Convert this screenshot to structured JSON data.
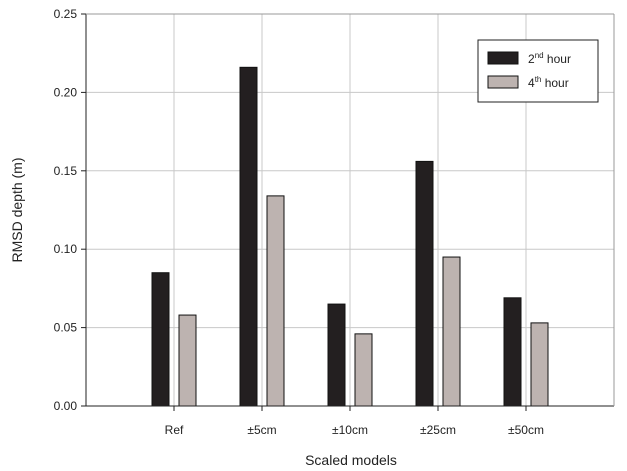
{
  "chart_data": {
    "type": "bar",
    "xlabel": "Scaled models",
    "ylabel": "RMSD depth (m)",
    "categories": [
      "Ref",
      "±5cm",
      "±10cm",
      "±25cm",
      "±50cm"
    ],
    "series": [
      {
        "name": "2nd hour",
        "name_base": "2",
        "name_sup": "nd",
        "name_rest": " hour",
        "color": "#231f20",
        "values": [
          0.085,
          0.216,
          0.065,
          0.156,
          0.069
        ]
      },
      {
        "name": "4th hour",
        "name_base": "4",
        "name_sup": "th",
        "name_rest": " hour",
        "color": "#bdb3b0",
        "values": [
          0.058,
          0.134,
          0.046,
          0.095,
          0.053
        ]
      }
    ],
    "ylim": [
      0,
      0.25
    ],
    "yticks": [
      "0.00",
      "0.05",
      "0.10",
      "0.15",
      "0.20",
      "0.25"
    ],
    "grid": true,
    "legend_position": "top-right"
  }
}
